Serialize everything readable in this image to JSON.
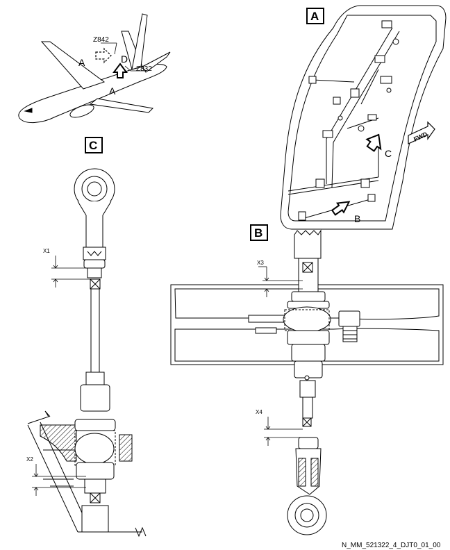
{
  "views": {
    "A": {
      "label": "A"
    },
    "B": {
      "label": "B"
    },
    "C": {
      "label": "C"
    }
  },
  "aircraft": {
    "view_ref_a_left": "A",
    "view_ref_a_bottom": "A",
    "view_ref_d": "D",
    "zone_1": "Z842",
    "zone_2": "Z832"
  },
  "view_a": {
    "arrow_b": "B",
    "arrow_c": "C",
    "fwd": "FWD"
  },
  "dimensions": {
    "x1": "X1",
    "x2": "X2",
    "x3": "X3",
    "x4": "X4"
  },
  "footer": {
    "reference": "N_MM_521322_4_DJT0_01_00"
  }
}
